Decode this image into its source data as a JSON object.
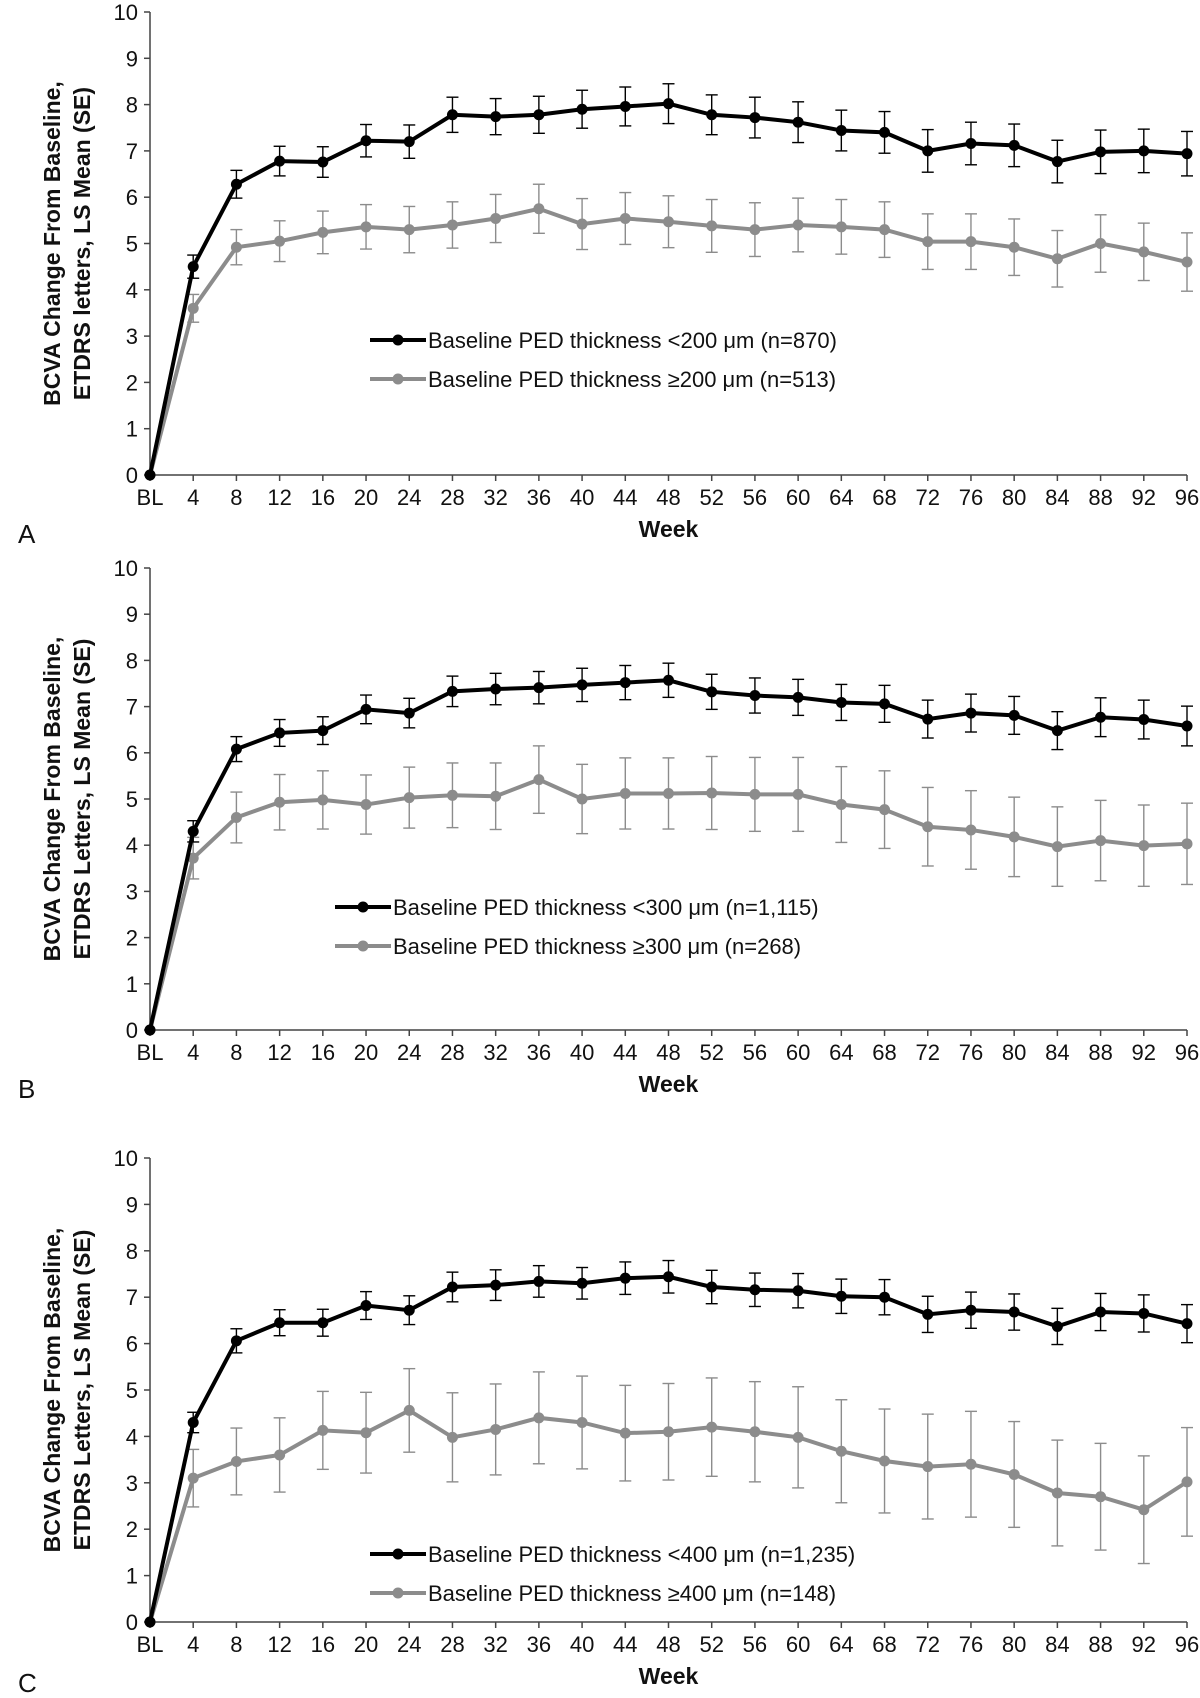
{
  "chart_data": [
    {
      "type": "line",
      "panel_label": "A",
      "xlabel": "Week",
      "ylabel_line1": "BCVA Change From Baseline,",
      "ylabel_line2": "ETDRS letters, LS Mean (SE)",
      "ylim": [
        0,
        10
      ],
      "yticks": [
        "0",
        "1",
        "2",
        "3",
        "4",
        "5",
        "6",
        "7",
        "8",
        "9",
        "10"
      ],
      "categories": [
        "BL",
        "4",
        "8",
        "12",
        "16",
        "20",
        "24",
        "28",
        "32",
        "36",
        "40",
        "44",
        "48",
        "52",
        "56",
        "60",
        "64",
        "68",
        "72",
        "76",
        "80",
        "84",
        "88",
        "92",
        "96"
      ],
      "legend_position": "center",
      "series": [
        {
          "name": "Baseline PED thickness <200 μm (n=870)",
          "color": "#000000",
          "values": [
            0,
            4.5,
            6.28,
            6.78,
            6.76,
            7.22,
            7.2,
            7.78,
            7.74,
            7.78,
            7.9,
            7.96,
            8.02,
            7.78,
            7.72,
            7.62,
            7.44,
            7.4,
            7.0,
            7.16,
            7.12,
            6.77,
            6.98,
            7.0,
            6.94
          ],
          "errors": [
            0,
            0.25,
            0.3,
            0.32,
            0.33,
            0.35,
            0.36,
            0.38,
            0.39,
            0.4,
            0.41,
            0.42,
            0.43,
            0.43,
            0.44,
            0.44,
            0.44,
            0.45,
            0.46,
            0.46,
            0.46,
            0.46,
            0.47,
            0.47,
            0.48
          ]
        },
        {
          "name": "Baseline PED thickness ≥200 μm (n=513)",
          "color": "#8c8c8c",
          "values": [
            0,
            3.6,
            4.92,
            5.05,
            5.24,
            5.36,
            5.3,
            5.4,
            5.54,
            5.75,
            5.42,
            5.54,
            5.47,
            5.38,
            5.3,
            5.4,
            5.36,
            5.3,
            5.04,
            5.04,
            4.92,
            4.67,
            5.0,
            4.82,
            4.6
          ],
          "errors": [
            0,
            0.3,
            0.38,
            0.44,
            0.46,
            0.48,
            0.5,
            0.5,
            0.52,
            0.53,
            0.55,
            0.56,
            0.56,
            0.57,
            0.58,
            0.58,
            0.59,
            0.6,
            0.6,
            0.6,
            0.61,
            0.61,
            0.62,
            0.62,
            0.63
          ]
        }
      ]
    },
    {
      "type": "line",
      "panel_label": "B",
      "xlabel": "Week",
      "ylabel_line1": "BCVA Change From Baseline,",
      "ylabel_line2": "ETDRS Letters, LS Mean (SE)",
      "ylim": [
        0,
        10
      ],
      "yticks": [
        "0",
        "1",
        "2",
        "3",
        "4",
        "5",
        "6",
        "7",
        "8",
        "9",
        "10"
      ],
      "categories": [
        "BL",
        "4",
        "8",
        "12",
        "16",
        "20",
        "24",
        "28",
        "32",
        "36",
        "40",
        "44",
        "48",
        "52",
        "56",
        "60",
        "64",
        "68",
        "72",
        "76",
        "80",
        "84",
        "88",
        "92",
        "96"
      ],
      "legend_position": "bottom-center",
      "series": [
        {
          "name": "Baseline PED thickness <300 μm (n=1,115)",
          "color": "#000000",
          "values": [
            0,
            4.3,
            6.08,
            6.43,
            6.48,
            6.94,
            6.86,
            7.33,
            7.38,
            7.41,
            7.47,
            7.52,
            7.57,
            7.32,
            7.24,
            7.2,
            7.09,
            7.06,
            6.73,
            6.86,
            6.81,
            6.48,
            6.77,
            6.72,
            6.58
          ],
          "errors": [
            0,
            0.23,
            0.27,
            0.29,
            0.3,
            0.31,
            0.32,
            0.33,
            0.34,
            0.35,
            0.36,
            0.37,
            0.37,
            0.38,
            0.38,
            0.39,
            0.39,
            0.4,
            0.41,
            0.41,
            0.41,
            0.41,
            0.42,
            0.42,
            0.43
          ]
        },
        {
          "name": "Baseline PED thickness ≥300 μm (n=268)",
          "color": "#8c8c8c",
          "values": [
            0,
            3.72,
            4.6,
            4.93,
            4.98,
            4.88,
            5.03,
            5.08,
            5.06,
            5.42,
            5.0,
            5.12,
            5.12,
            5.13,
            5.1,
            5.1,
            4.88,
            4.77,
            4.4,
            4.33,
            4.18,
            3.97,
            4.1,
            3.99,
            4.03
          ],
          "errors": [
            0,
            0.45,
            0.55,
            0.6,
            0.63,
            0.64,
            0.66,
            0.7,
            0.72,
            0.73,
            0.75,
            0.77,
            0.77,
            0.79,
            0.8,
            0.8,
            0.82,
            0.84,
            0.85,
            0.85,
            0.86,
            0.86,
            0.87,
            0.88,
            0.88
          ]
        }
      ]
    },
    {
      "type": "line",
      "panel_label": "C",
      "xlabel": "Week",
      "ylabel_line1": "BCVA Change From Baseline,",
      "ylabel_line2": "ETDRS Letters, LS Mean (SE)",
      "ylim": [
        0,
        10
      ],
      "yticks": [
        "0",
        "1",
        "2",
        "3",
        "4",
        "5",
        "6",
        "7",
        "8",
        "9",
        "10"
      ],
      "categories": [
        "BL",
        "4",
        "8",
        "12",
        "16",
        "20",
        "24",
        "28",
        "32",
        "36",
        "40",
        "44",
        "48",
        "52",
        "56",
        "60",
        "64",
        "68",
        "72",
        "76",
        "80",
        "84",
        "88",
        "92",
        "96"
      ],
      "legend_position": "bottom-center",
      "series": [
        {
          "name": "Baseline PED thickness <400 μm (n=1,235)",
          "color": "#000000",
          "values": [
            0,
            4.3,
            6.06,
            6.45,
            6.45,
            6.82,
            6.72,
            7.22,
            7.26,
            7.34,
            7.3,
            7.41,
            7.44,
            7.22,
            7.16,
            7.14,
            7.02,
            7.0,
            6.63,
            6.72,
            6.68,
            6.37,
            6.68,
            6.65,
            6.43
          ],
          "errors": [
            0,
            0.22,
            0.26,
            0.28,
            0.29,
            0.3,
            0.31,
            0.32,
            0.33,
            0.34,
            0.34,
            0.35,
            0.35,
            0.36,
            0.36,
            0.37,
            0.37,
            0.38,
            0.39,
            0.39,
            0.39,
            0.39,
            0.4,
            0.4,
            0.41
          ]
        },
        {
          "name": "Baseline PED thickness ≥400 μm (n=148)",
          "color": "#8c8c8c",
          "values": [
            0,
            3.1,
            3.46,
            3.6,
            4.13,
            4.08,
            4.56,
            3.98,
            4.15,
            4.4,
            4.3,
            4.07,
            4.1,
            4.2,
            4.1,
            3.98,
            3.68,
            3.47,
            3.35,
            3.4,
            3.18,
            2.78,
            2.7,
            2.42,
            3.02
          ],
          "errors": [
            0,
            0.62,
            0.72,
            0.8,
            0.84,
            0.87,
            0.9,
            0.96,
            0.98,
            0.99,
            1.0,
            1.03,
            1.04,
            1.06,
            1.08,
            1.09,
            1.11,
            1.12,
            1.13,
            1.14,
            1.14,
            1.14,
            1.15,
            1.16,
            1.17
          ]
        }
      ]
    }
  ]
}
